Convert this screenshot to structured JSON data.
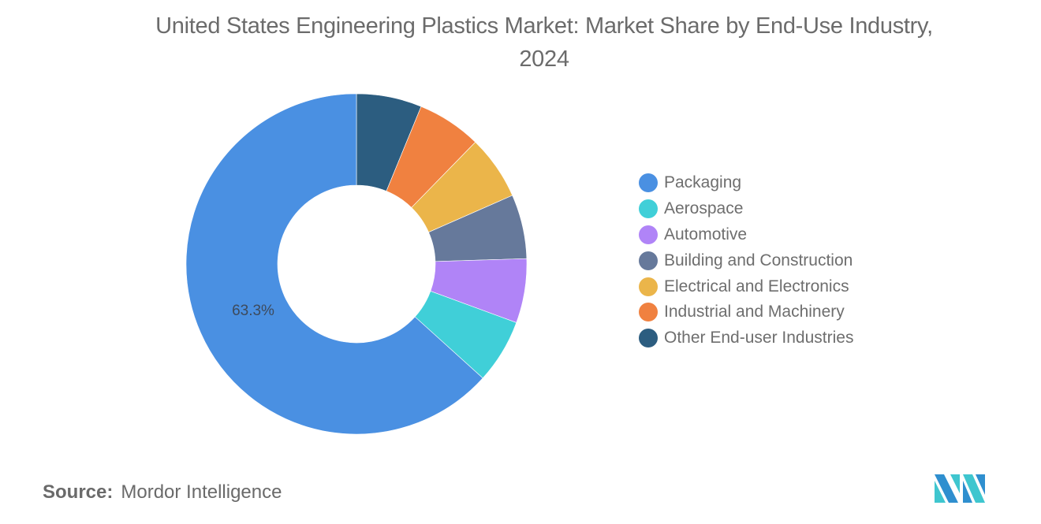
{
  "header": {
    "title_line1": "United States Engineering Plastics Market: Market Share by End-Use Industry,",
    "title_line2": "2024"
  },
  "chart_data": {
    "type": "pie",
    "variant": "donut",
    "title": "United States Engineering Plastics Market: Market Share by End-Use Industry, 2024",
    "categories": [
      "Packaging",
      "Aerospace",
      "Automotive",
      "Building and Construction",
      "Electrical and Electronics",
      "Industrial and Machinery",
      "Other End-user Industries"
    ],
    "values": [
      63.3,
      6.1,
      6.1,
      6.1,
      6.1,
      6.1,
      6.2
    ],
    "colors": [
      "#4a90e2",
      "#40cfd8",
      "#b084f7",
      "#66799b",
      "#ebb54a",
      "#f08140",
      "#2c5d80"
    ],
    "data_labels": [
      {
        "category": "Packaging",
        "text": "63.3%"
      }
    ],
    "legend_position": "right"
  },
  "legend": {
    "items": [
      {
        "label": "Packaging",
        "color": "#4a90e2"
      },
      {
        "label": "Aerospace",
        "color": "#40cfd8"
      },
      {
        "label": "Automotive",
        "color": "#b084f7"
      },
      {
        "label": "Building and Construction",
        "color": "#66799b"
      },
      {
        "label": "Electrical and Electronics",
        "color": "#ebb54a"
      },
      {
        "label": "Industrial and Machinery",
        "color": "#f08140"
      },
      {
        "label": "Other End-user Industries",
        "color": "#2c5d80"
      }
    ]
  },
  "labels": {
    "packaging_pct": "63.3%"
  },
  "footer": {
    "source_key": "Source:",
    "source_value": "Mordor Intelligence"
  },
  "logo": {
    "icon": "mordor-intelligence-logo-icon"
  }
}
